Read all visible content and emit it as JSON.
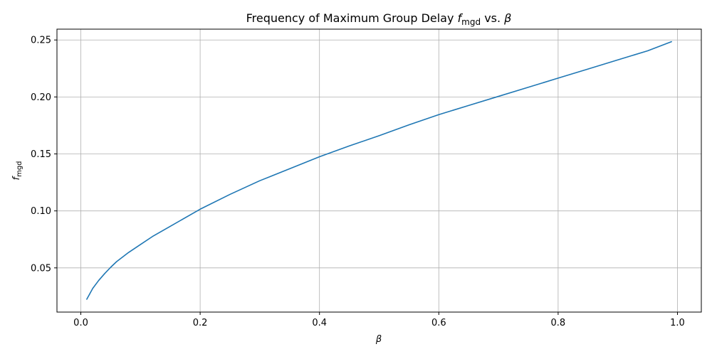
{
  "chart_data": {
    "type": "line",
    "title": {
      "prefix": "Frequency of Maximum Group Delay ",
      "symbol": "f",
      "symbol_sub": "mgd",
      "middle": " vs. ",
      "symbol2": "β"
    },
    "xlabel": "β",
    "ylabel": {
      "symbol": "f",
      "sub": "mgd"
    },
    "xlim": [
      -0.04,
      1.04
    ],
    "ylim": [
      0.0112,
      0.2595
    ],
    "xticks": [
      0.0,
      0.2,
      0.4,
      0.6,
      0.8,
      1.0
    ],
    "xtick_labels": [
      "0.0",
      "0.2",
      "0.4",
      "0.6",
      "0.8",
      "1.0"
    ],
    "yticks": [
      0.05,
      0.1,
      0.15,
      0.2,
      0.25
    ],
    "ytick_labels": [
      "0.05",
      "0.10",
      "0.15",
      "0.20",
      "0.25"
    ],
    "grid": true,
    "series": [
      {
        "color": "#1f77b4",
        "x": [
          0.01,
          0.02,
          0.03,
          0.04,
          0.05,
          0.06,
          0.08,
          0.1,
          0.12,
          0.15,
          0.2,
          0.25,
          0.3,
          0.35,
          0.4,
          0.45,
          0.5,
          0.55,
          0.6,
          0.65,
          0.7,
          0.75,
          0.8,
          0.85,
          0.9,
          0.95,
          0.99
        ],
        "y": [
          0.0225,
          0.032,
          0.039,
          0.045,
          0.0505,
          0.0555,
          0.0635,
          0.0705,
          0.0775,
          0.0865,
          0.1015,
          0.1145,
          0.1265,
          0.137,
          0.1475,
          0.157,
          0.166,
          0.1755,
          0.1845,
          0.1925,
          0.2005,
          0.2085,
          0.2165,
          0.2245,
          0.2325,
          0.2405,
          0.2485
        ]
      }
    ]
  }
}
